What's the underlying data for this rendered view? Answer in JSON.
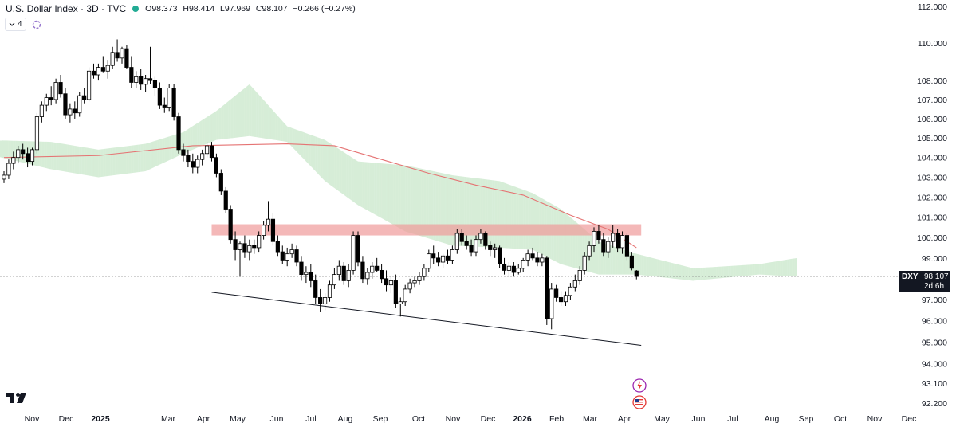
{
  "header": {
    "title": "U.S. Dollar Index · 3D · TVC",
    "open_label": "O",
    "open": "98.373",
    "high_label": "H",
    "high": "98.414",
    "low_label": "L",
    "low": "97.969",
    "close_label": "C",
    "close": "98.107",
    "change": "−0.266 (−0.27%)",
    "indicator_count": "4",
    "market_status_color": "#22ab94"
  },
  "price_tag": {
    "symbol": "DXY",
    "last": "98.107",
    "countdown": "2d 6h",
    "background": "#131722"
  },
  "colors": {
    "cloud_bull": "#a5d6a7",
    "cloud_bear": "#ffcdd2",
    "ma_line": "#e57373",
    "resistance_zone": "#ef9a9a",
    "support_line": "#131722",
    "candle_up": "#ffffff",
    "candle_down": "#000000"
  },
  "icons": [
    "chevron-down-icon",
    "indicator-loop-icon",
    "lightning-event-icon",
    "us-flag-event-icon",
    "tradingview-logo-icon"
  ],
  "chart_data": {
    "type": "candlestick",
    "title": "U.S. Dollar Index · 3D · TVC",
    "timeframe": "3D",
    "y_axis": {
      "ticks": [
        "112.000",
        "110.000",
        "108.000",
        "107.000",
        "106.000",
        "105.000",
        "104.000",
        "103.000",
        "102.000",
        "101.000",
        "100.000",
        "99.000",
        "97.000",
        "96.000",
        "95.000",
        "94.000",
        "93.100",
        "92.200"
      ],
      "scale": "log",
      "range": [
        92.2,
        112.0
      ]
    },
    "x_axis": {
      "ticks": [
        "Nov",
        "Dec",
        "2025",
        "Mar",
        "Apr",
        "May",
        "Jun",
        "Jul",
        "Aug",
        "Sep",
        "Oct",
        "Nov",
        "Dec",
        "2026",
        "Feb",
        "Mar",
        "Apr",
        "May",
        "Jun",
        "Jul",
        "Aug",
        "Sep",
        "Oct",
        "Nov",
        "Dec"
      ],
      "bold_ticks": [
        "2025",
        "2026"
      ]
    },
    "last_price": 98.107,
    "candles": [
      {
        "o": 102.9,
        "h": 103.3,
        "l": 102.7,
        "c": 103.1
      },
      {
        "o": 103.1,
        "h": 103.9,
        "l": 102.9,
        "c": 103.7
      },
      {
        "o": 103.7,
        "h": 104.3,
        "l": 103.4,
        "c": 104.0
      },
      {
        "o": 104.0,
        "h": 104.6,
        "l": 103.7,
        "c": 104.4
      },
      {
        "o": 104.4,
        "h": 104.7,
        "l": 103.9,
        "c": 104.2
      },
      {
        "o": 104.2,
        "h": 104.5,
        "l": 103.5,
        "c": 103.8
      },
      {
        "o": 103.8,
        "h": 104.5,
        "l": 103.6,
        "c": 104.4
      },
      {
        "o": 104.4,
        "h": 106.3,
        "l": 104.2,
        "c": 106.1
      },
      {
        "o": 106.1,
        "h": 106.9,
        "l": 105.8,
        "c": 106.7
      },
      {
        "o": 106.7,
        "h": 107.3,
        "l": 106.4,
        "c": 107.1
      },
      {
        "o": 107.1,
        "h": 107.7,
        "l": 106.7,
        "c": 107.0
      },
      {
        "o": 107.0,
        "h": 108.1,
        "l": 106.8,
        "c": 107.9
      },
      {
        "o": 107.9,
        "h": 108.3,
        "l": 107.1,
        "c": 107.3
      },
      {
        "o": 107.3,
        "h": 107.6,
        "l": 106.0,
        "c": 106.2
      },
      {
        "o": 106.2,
        "h": 106.8,
        "l": 105.8,
        "c": 106.5
      },
      {
        "o": 106.5,
        "h": 106.9,
        "l": 106.0,
        "c": 106.3
      },
      {
        "o": 106.3,
        "h": 107.4,
        "l": 106.1,
        "c": 107.2
      },
      {
        "o": 107.2,
        "h": 107.6,
        "l": 106.8,
        "c": 107.0
      },
      {
        "o": 107.0,
        "h": 108.7,
        "l": 106.9,
        "c": 108.5
      },
      {
        "o": 108.5,
        "h": 108.9,
        "l": 108.1,
        "c": 108.3
      },
      {
        "o": 108.3,
        "h": 108.9,
        "l": 108.0,
        "c": 108.7
      },
      {
        "o": 108.7,
        "h": 109.3,
        "l": 108.4,
        "c": 108.5
      },
      {
        "o": 108.5,
        "h": 109.1,
        "l": 108.1,
        "c": 108.8
      },
      {
        "o": 108.8,
        "h": 109.8,
        "l": 108.6,
        "c": 109.5
      },
      {
        "o": 109.5,
        "h": 110.2,
        "l": 109.0,
        "c": 109.2
      },
      {
        "o": 109.2,
        "h": 109.8,
        "l": 108.9,
        "c": 109.7
      },
      {
        "o": 109.7,
        "h": 109.9,
        "l": 108.6,
        "c": 108.7
      },
      {
        "o": 108.7,
        "h": 109.3,
        "l": 107.6,
        "c": 107.9
      },
      {
        "o": 107.9,
        "h": 108.5,
        "l": 107.6,
        "c": 108.2
      },
      {
        "o": 108.2,
        "h": 108.6,
        "l": 107.5,
        "c": 107.8
      },
      {
        "o": 107.8,
        "h": 108.3,
        "l": 107.4,
        "c": 108.1
      },
      {
        "o": 108.1,
        "h": 109.8,
        "l": 107.8,
        "c": 108.0
      },
      {
        "o": 108.0,
        "h": 108.2,
        "l": 107.2,
        "c": 107.6
      },
      {
        "o": 107.6,
        "h": 107.9,
        "l": 106.5,
        "c": 106.7
      },
      {
        "o": 106.7,
        "h": 107.1,
        "l": 106.3,
        "c": 106.6
      },
      {
        "o": 106.6,
        "h": 107.8,
        "l": 106.4,
        "c": 107.6
      },
      {
        "o": 107.6,
        "h": 107.8,
        "l": 105.9,
        "c": 106.1
      },
      {
        "o": 106.1,
        "h": 106.3,
        "l": 104.2,
        "c": 104.4
      },
      {
        "o": 104.4,
        "h": 104.7,
        "l": 103.8,
        "c": 104.1
      },
      {
        "o": 104.1,
        "h": 104.4,
        "l": 103.5,
        "c": 103.8
      },
      {
        "o": 103.8,
        "h": 104.2,
        "l": 103.2,
        "c": 103.5
      },
      {
        "o": 103.5,
        "h": 104.1,
        "l": 103.2,
        "c": 103.9
      },
      {
        "o": 103.9,
        "h": 104.4,
        "l": 103.6,
        "c": 104.2
      },
      {
        "o": 104.2,
        "h": 104.8,
        "l": 104.0,
        "c": 104.6
      },
      {
        "o": 104.6,
        "h": 104.8,
        "l": 103.8,
        "c": 104.0
      },
      {
        "o": 104.0,
        "h": 104.2,
        "l": 103.0,
        "c": 103.2
      },
      {
        "o": 103.2,
        "h": 103.4,
        "l": 102.1,
        "c": 102.3
      },
      {
        "o": 102.3,
        "h": 102.5,
        "l": 101.2,
        "c": 101.4
      },
      {
        "o": 101.4,
        "h": 101.6,
        "l": 99.7,
        "c": 99.9
      },
      {
        "o": 99.9,
        "h": 100.3,
        "l": 98.9,
        "c": 99.4
      },
      {
        "o": 99.4,
        "h": 99.8,
        "l": 98.1,
        "c": 99.7
      },
      {
        "o": 99.7,
        "h": 100.1,
        "l": 99.0,
        "c": 99.3
      },
      {
        "o": 99.3,
        "h": 99.9,
        "l": 98.9,
        "c": 99.6
      },
      {
        "o": 99.6,
        "h": 99.9,
        "l": 99.2,
        "c": 99.5
      },
      {
        "o": 99.5,
        "h": 100.3,
        "l": 99.3,
        "c": 100.1
      },
      {
        "o": 100.1,
        "h": 100.8,
        "l": 99.9,
        "c": 100.6
      },
      {
        "o": 100.6,
        "h": 101.8,
        "l": 100.3,
        "c": 100.9
      },
      {
        "o": 100.9,
        "h": 101.2,
        "l": 99.6,
        "c": 99.8
      },
      {
        "o": 99.8,
        "h": 100.1,
        "l": 99.1,
        "c": 99.3
      },
      {
        "o": 99.3,
        "h": 99.6,
        "l": 98.7,
        "c": 98.9
      },
      {
        "o": 98.9,
        "h": 99.5,
        "l": 98.6,
        "c": 99.2
      },
      {
        "o": 99.2,
        "h": 99.7,
        "l": 99.0,
        "c": 99.4
      },
      {
        "o": 99.4,
        "h": 99.6,
        "l": 98.6,
        "c": 98.8
      },
      {
        "o": 98.8,
        "h": 99.1,
        "l": 97.9,
        "c": 98.2
      },
      {
        "o": 98.2,
        "h": 98.6,
        "l": 97.8,
        "c": 98.3
      },
      {
        "o": 98.3,
        "h": 98.7,
        "l": 97.6,
        "c": 97.9
      },
      {
        "o": 97.9,
        "h": 98.2,
        "l": 96.8,
        "c": 97.1
      },
      {
        "o": 97.1,
        "h": 97.5,
        "l": 96.4,
        "c": 96.8
      },
      {
        "o": 96.8,
        "h": 97.3,
        "l": 96.5,
        "c": 97.1
      },
      {
        "o": 97.1,
        "h": 97.9,
        "l": 96.9,
        "c": 97.7
      },
      {
        "o": 97.7,
        "h": 98.5,
        "l": 97.5,
        "c": 98.2
      },
      {
        "o": 98.2,
        "h": 98.9,
        "l": 97.9,
        "c": 98.6
      },
      {
        "o": 98.6,
        "h": 98.8,
        "l": 97.7,
        "c": 97.9
      },
      {
        "o": 97.9,
        "h": 98.7,
        "l": 97.6,
        "c": 98.4
      },
      {
        "o": 98.4,
        "h": 100.3,
        "l": 98.2,
        "c": 100.1
      },
      {
        "o": 100.1,
        "h": 100.3,
        "l": 98.6,
        "c": 98.8
      },
      {
        "o": 98.8,
        "h": 99.1,
        "l": 97.8,
        "c": 98.0
      },
      {
        "o": 98.0,
        "h": 98.5,
        "l": 97.7,
        "c": 98.3
      },
      {
        "o": 98.3,
        "h": 98.8,
        "l": 98.0,
        "c": 98.6
      },
      {
        "o": 98.6,
        "h": 99.0,
        "l": 98.3,
        "c": 98.4
      },
      {
        "o": 98.4,
        "h": 98.7,
        "l": 97.8,
        "c": 98.0
      },
      {
        "o": 98.0,
        "h": 98.4,
        "l": 97.4,
        "c": 97.7
      },
      {
        "o": 97.7,
        "h": 98.1,
        "l": 97.3,
        "c": 97.9
      },
      {
        "o": 97.9,
        "h": 98.2,
        "l": 96.6,
        "c": 96.8
      },
      {
        "o": 96.8,
        "h": 97.1,
        "l": 96.2,
        "c": 96.9
      },
      {
        "o": 96.9,
        "h": 97.7,
        "l": 96.7,
        "c": 97.5
      },
      {
        "o": 97.5,
        "h": 98.0,
        "l": 97.3,
        "c": 97.8
      },
      {
        "o": 97.8,
        "h": 98.1,
        "l": 97.6,
        "c": 97.9
      },
      {
        "o": 97.9,
        "h": 98.3,
        "l": 97.7,
        "c": 98.1
      },
      {
        "o": 98.1,
        "h": 98.7,
        "l": 97.9,
        "c": 98.5
      },
      {
        "o": 98.5,
        "h": 99.4,
        "l": 98.3,
        "c": 99.2
      },
      {
        "o": 99.2,
        "h": 99.6,
        "l": 98.7,
        "c": 99.0
      },
      {
        "o": 99.0,
        "h": 99.3,
        "l": 98.6,
        "c": 98.8
      },
      {
        "o": 98.8,
        "h": 99.2,
        "l": 98.5,
        "c": 99.1
      },
      {
        "o": 99.1,
        "h": 99.4,
        "l": 98.7,
        "c": 98.9
      },
      {
        "o": 98.9,
        "h": 99.6,
        "l": 98.7,
        "c": 99.4
      },
      {
        "o": 99.4,
        "h": 100.4,
        "l": 99.2,
        "c": 100.2
      },
      {
        "o": 100.2,
        "h": 100.4,
        "l": 99.6,
        "c": 99.8
      },
      {
        "o": 99.8,
        "h": 100.1,
        "l": 99.4,
        "c": 99.6
      },
      {
        "o": 99.6,
        "h": 99.9,
        "l": 99.1,
        "c": 99.3
      },
      {
        "o": 99.3,
        "h": 100.1,
        "l": 99.1,
        "c": 99.9
      },
      {
        "o": 99.9,
        "h": 100.4,
        "l": 99.7,
        "c": 100.2
      },
      {
        "o": 100.2,
        "h": 100.3,
        "l": 99.4,
        "c": 99.6
      },
      {
        "o": 99.6,
        "h": 99.8,
        "l": 99.1,
        "c": 99.4
      },
      {
        "o": 99.4,
        "h": 99.7,
        "l": 99.0,
        "c": 99.5
      },
      {
        "o": 99.5,
        "h": 99.6,
        "l": 98.5,
        "c": 98.7
      },
      {
        "o": 98.7,
        "h": 99.0,
        "l": 98.2,
        "c": 98.4
      },
      {
        "o": 98.4,
        "h": 98.8,
        "l": 98.1,
        "c": 98.6
      },
      {
        "o": 98.6,
        "h": 98.8,
        "l": 98.1,
        "c": 98.3
      },
      {
        "o": 98.3,
        "h": 98.7,
        "l": 98.2,
        "c": 98.5
      },
      {
        "o": 98.5,
        "h": 99.0,
        "l": 98.3,
        "c": 98.9
      },
      {
        "o": 98.9,
        "h": 99.4,
        "l": 98.6,
        "c": 99.2
      },
      {
        "o": 99.2,
        "h": 99.5,
        "l": 98.9,
        "c": 99.0
      },
      {
        "o": 99.0,
        "h": 99.3,
        "l": 98.6,
        "c": 98.8
      },
      {
        "o": 98.8,
        "h": 99.2,
        "l": 98.6,
        "c": 99.0
      },
      {
        "o": 99.0,
        "h": 99.1,
        "l": 95.8,
        "c": 96.1
      },
      {
        "o": 96.1,
        "h": 97.8,
        "l": 95.6,
        "c": 97.5
      },
      {
        "o": 97.5,
        "h": 97.7,
        "l": 96.9,
        "c": 97.1
      },
      {
        "o": 97.1,
        "h": 97.4,
        "l": 96.7,
        "c": 96.9
      },
      {
        "o": 96.9,
        "h": 97.4,
        "l": 96.7,
        "c": 97.2
      },
      {
        "o": 97.2,
        "h": 97.8,
        "l": 97.0,
        "c": 97.6
      },
      {
        "o": 97.6,
        "h": 98.2,
        "l": 97.4,
        "c": 97.9
      },
      {
        "o": 97.9,
        "h": 98.6,
        "l": 97.7,
        "c": 98.4
      },
      {
        "o": 98.4,
        "h": 99.3,
        "l": 98.2,
        "c": 99.1
      },
      {
        "o": 99.1,
        "h": 99.8,
        "l": 98.9,
        "c": 99.6
      },
      {
        "o": 99.6,
        "h": 100.5,
        "l": 99.3,
        "c": 100.3
      },
      {
        "o": 100.3,
        "h": 100.6,
        "l": 99.7,
        "c": 99.9
      },
      {
        "o": 99.9,
        "h": 100.2,
        "l": 99.1,
        "c": 99.3
      },
      {
        "o": 99.3,
        "h": 100.0,
        "l": 99.0,
        "c": 99.8
      },
      {
        "o": 99.8,
        "h": 100.6,
        "l": 99.5,
        "c": 100.2
      },
      {
        "o": 100.2,
        "h": 100.4,
        "l": 99.3,
        "c": 99.5
      },
      {
        "o": 99.5,
        "h": 100.3,
        "l": 99.2,
        "c": 100.1
      },
      {
        "o": 100.1,
        "h": 100.2,
        "l": 98.9,
        "c": 99.1
      },
      {
        "o": 99.1,
        "h": 99.3,
        "l": 98.4,
        "c": 98.5
      },
      {
        "o": 98.373,
        "h": 98.414,
        "l": 97.969,
        "c": 98.107
      }
    ],
    "ma_line": [
      [
        0,
        104.0
      ],
      [
        20,
        104.1
      ],
      [
        40,
        104.6
      ],
      [
        60,
        104.7
      ],
      [
        70,
        104.6
      ],
      [
        80,
        103.9
      ],
      [
        90,
        103.2
      ],
      [
        100,
        102.6
      ],
      [
        110,
        102.1
      ],
      [
        120,
        101.1
      ],
      [
        128,
        100.4
      ],
      [
        134,
        99.5
      ]
    ],
    "cloud": {
      "lead_a": [
        [
          -4,
          104.9
        ],
        [
          10,
          104.8
        ],
        [
          20,
          104.4
        ],
        [
          30,
          104.7
        ],
        [
          38,
          105.3
        ],
        [
          45,
          106.4
        ],
        [
          52,
          107.8
        ],
        [
          60,
          105.6
        ],
        [
          68,
          104.9
        ],
        [
          75,
          103.8
        ],
        [
          85,
          103.6
        ],
        [
          95,
          103.1
        ],
        [
          105,
          102.8
        ],
        [
          112,
          102.2
        ],
        [
          118,
          101.4
        ],
        [
          126,
          99.8
        ],
        [
          134,
          99.2
        ],
        [
          146,
          98.5
        ],
        [
          160,
          98.7
        ],
        [
          168,
          99.0
        ]
      ],
      "lead_b": [
        [
          -4,
          104.2
        ],
        [
          10,
          103.4
        ],
        [
          20,
          103.0
        ],
        [
          30,
          103.3
        ],
        [
          38,
          104.2
        ],
        [
          45,
          104.9
        ],
        [
          52,
          105.1
        ],
        [
          60,
          104.8
        ],
        [
          68,
          102.8
        ],
        [
          75,
          101.6
        ],
        [
          85,
          100.3
        ],
        [
          95,
          99.6
        ],
        [
          105,
          99.5
        ],
        [
          112,
          99.4
        ],
        [
          118,
          98.7
        ],
        [
          126,
          98.2
        ],
        [
          134,
          98.2
        ],
        [
          146,
          97.9
        ],
        [
          160,
          98.2
        ],
        [
          168,
          98.1
        ]
      ]
    },
    "resistance_zone": {
      "from_index": 44,
      "to_index": 135,
      "top": 100.65,
      "bottom": 100.1
    },
    "support_line": {
      "from": [
        44,
        97.35
      ],
      "to": [
        135,
        94.85
      ]
    }
  }
}
